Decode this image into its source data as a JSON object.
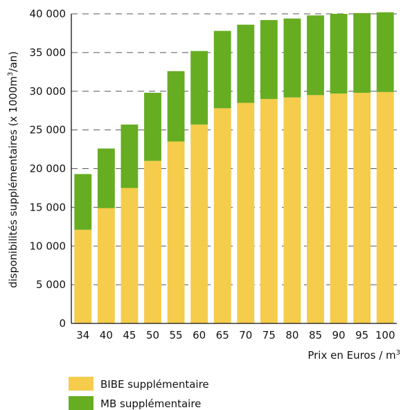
{
  "chart_data": {
    "type": "bar",
    "stacked": true,
    "categories": [
      "34",
      "40",
      "45",
      "50",
      "55",
      "60",
      "65",
      "70",
      "75",
      "80",
      "85",
      "90",
      "95",
      "100"
    ],
    "series": [
      {
        "name": "BIBE supplémentaire",
        "color": "#f5cc4b",
        "values": [
          12100,
          14900,
          17500,
          21000,
          23500,
          25700,
          27800,
          28500,
          29000,
          29200,
          29500,
          29700,
          29800,
          29900
        ]
      },
      {
        "name": "MB supplémentaire",
        "color": "#66ad22",
        "values": [
          7200,
          7700,
          8200,
          8800,
          9100,
          9500,
          10000,
          10100,
          10200,
          10200,
          10300,
          10300,
          10300,
          10300
        ]
      }
    ],
    "ylim": [
      0,
      40000
    ],
    "yticks": [
      "0",
      "5 000",
      "10 000",
      "15 000",
      "20 000",
      "25 000",
      "30 000",
      "35 000",
      "40 000"
    ],
    "ylabel_parts": [
      "disponibilités supplémentaires (x 1000m",
      "3",
      "/an)"
    ],
    "xlabel_parts": [
      "Prix en Euros / m",
      "3"
    ],
    "grid": "dashed horizontal",
    "legend_position": "bottom-left"
  }
}
